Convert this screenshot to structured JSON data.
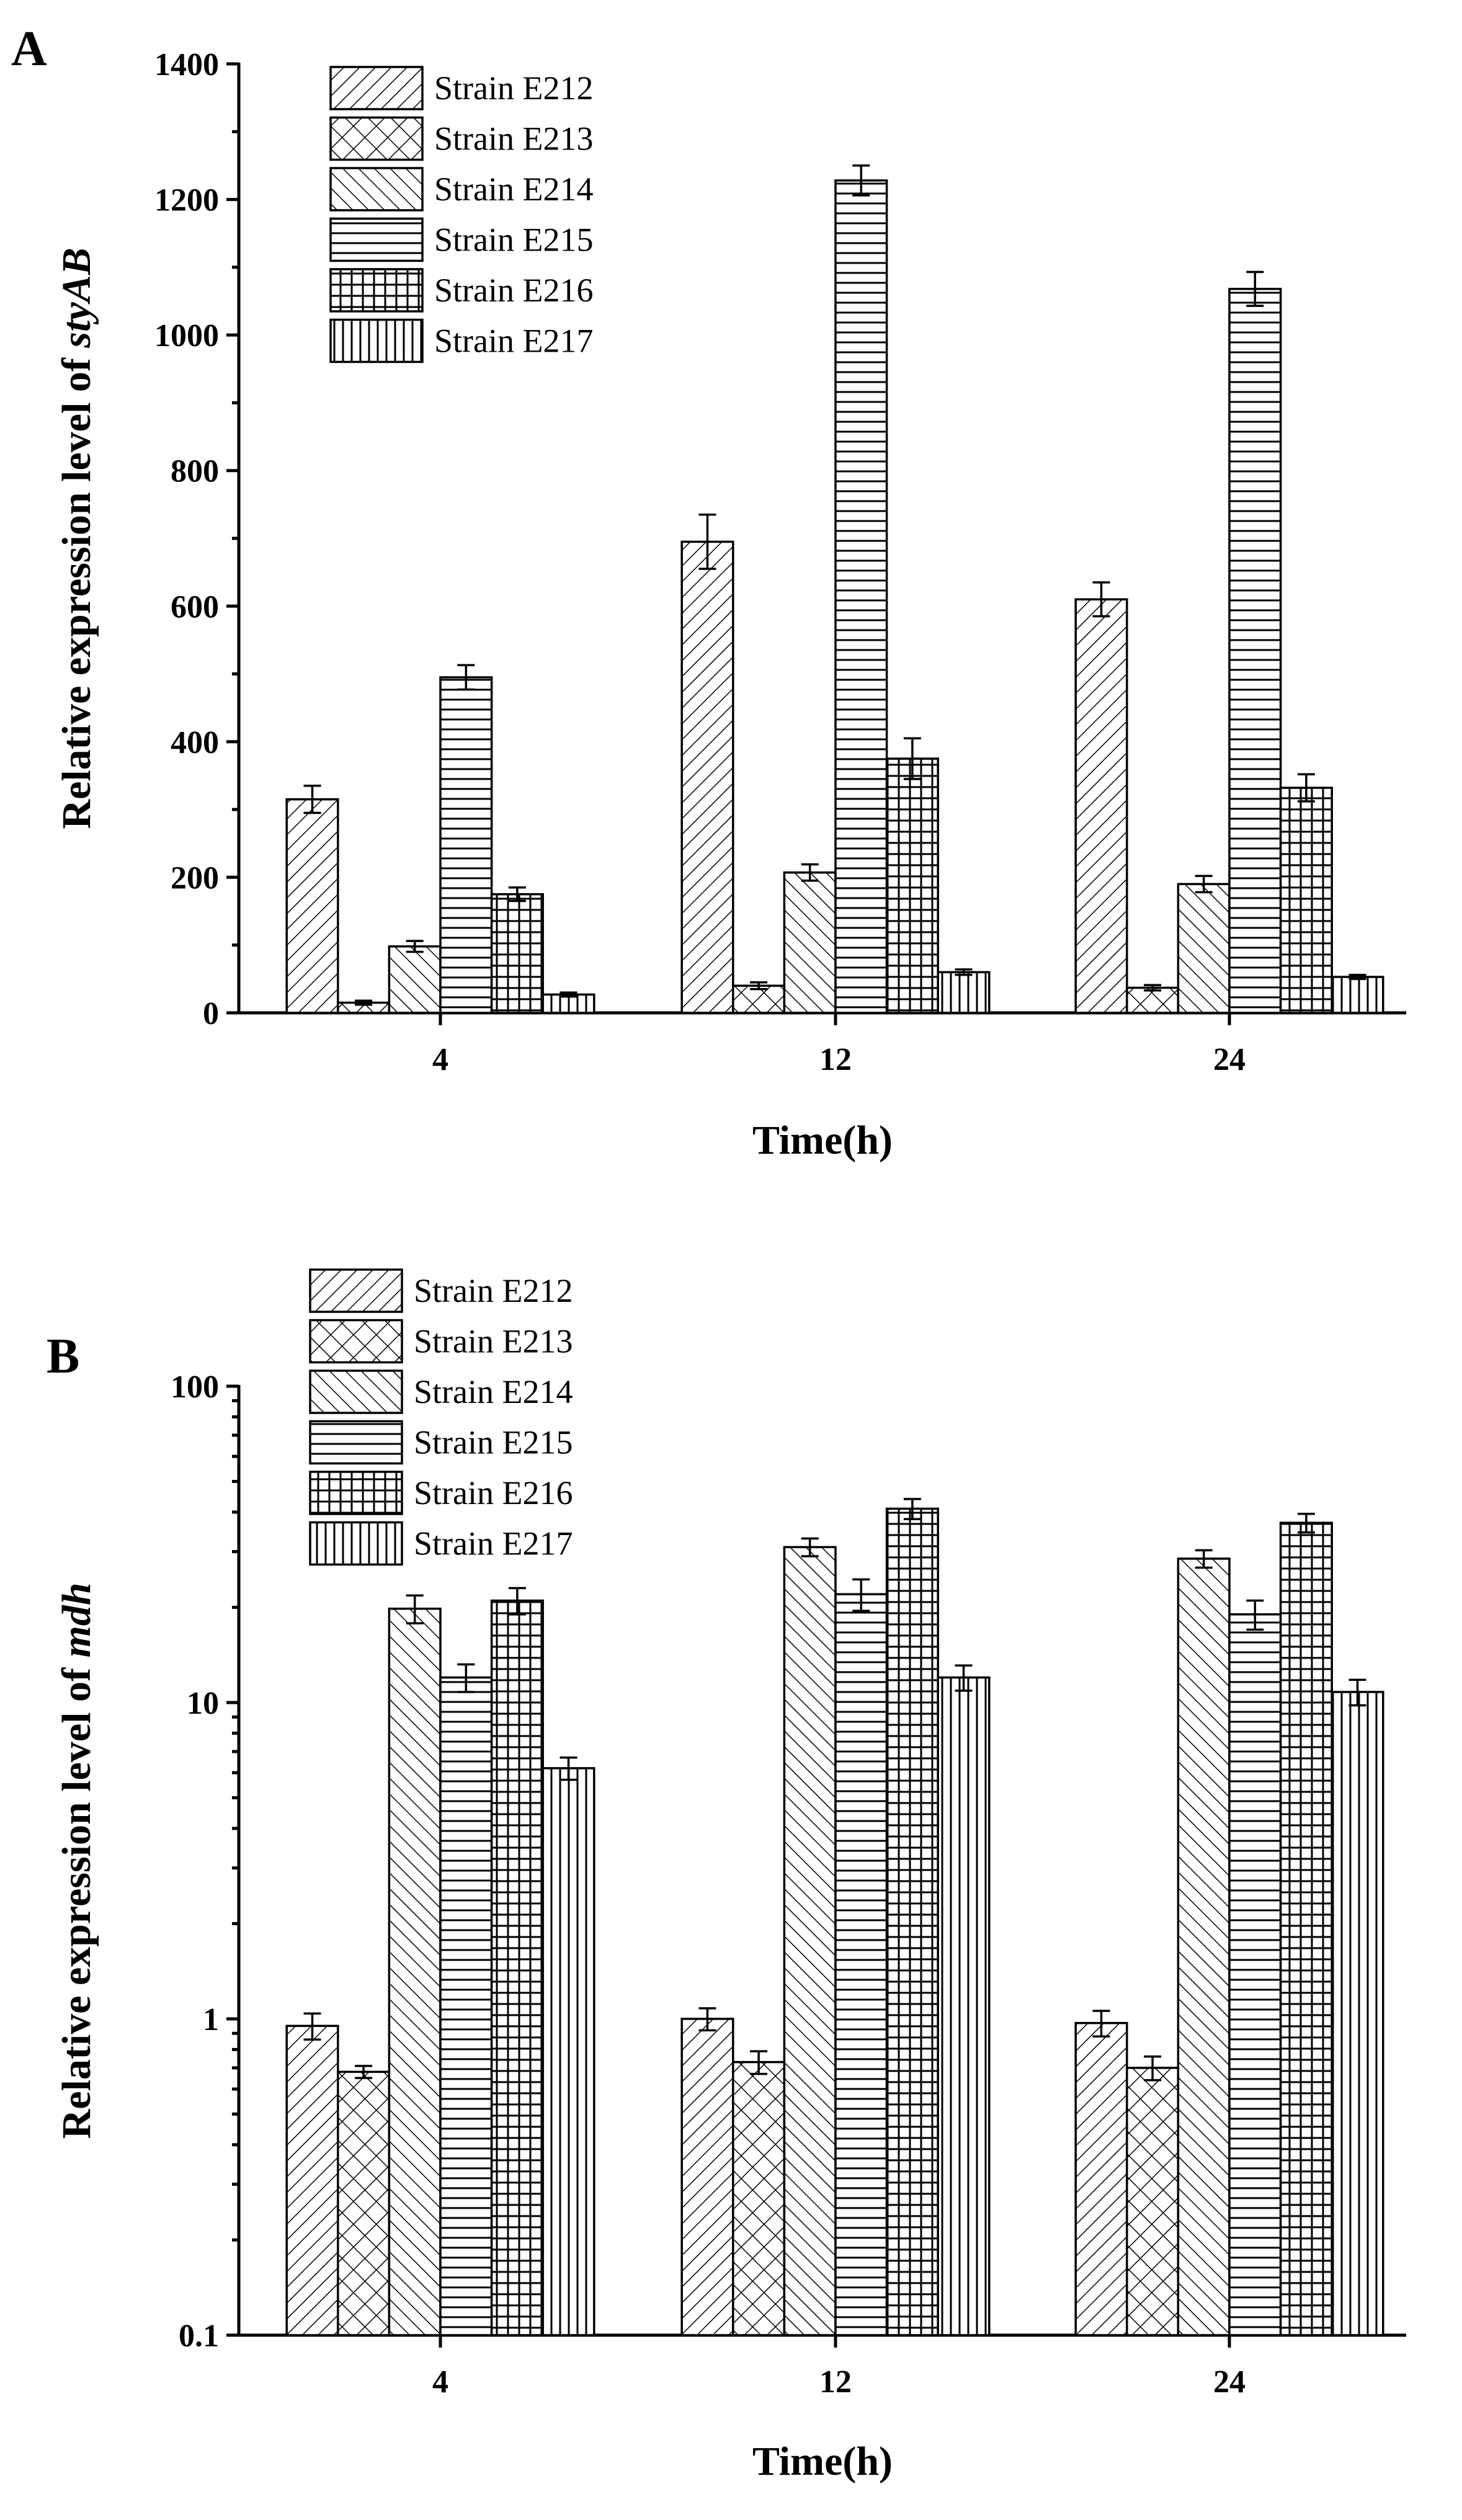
{
  "chart_data": [
    {
      "id": "A",
      "type": "bar",
      "panel_label": "A",
      "title": "",
      "xlabel": "Time(h)",
      "ylabel_prefix": "Relative expression level of ",
      "ylabel_gene": "styAB",
      "scale": "linear",
      "ylim": [
        0,
        1400
      ],
      "yticks": [
        0,
        200,
        400,
        600,
        800,
        1000,
        1200,
        1400
      ],
      "ytick_labels": [
        "0",
        "200",
        "400",
        "600",
        "800",
        "1000",
        "1200",
        "1400"
      ],
      "categories": [
        "4",
        "12",
        "24"
      ],
      "series": [
        {
          "name": "Strain E212",
          "pattern": "diag-fwd",
          "values": [
            315,
            695,
            610
          ],
          "errors": [
            20,
            40,
            25
          ]
        },
        {
          "name": "Strain E213",
          "pattern": "crosshatch",
          "values": [
            15,
            40,
            37
          ],
          "errors": [
            3,
            5,
            4
          ]
        },
        {
          "name": "Strain E214",
          "pattern": "diag-back",
          "values": [
            98,
            207,
            190
          ],
          "errors": [
            8,
            12,
            12
          ]
        },
        {
          "name": "Strain E215",
          "pattern": "horizontal",
          "values": [
            495,
            1228,
            1068
          ],
          "errors": [
            18,
            22,
            25
          ]
        },
        {
          "name": "Strain E216",
          "pattern": "grid",
          "values": [
            175,
            375,
            332
          ],
          "errors": [
            10,
            30,
            20
          ]
        },
        {
          "name": "Strain E217",
          "pattern": "vertical",
          "values": [
            27,
            60,
            53
          ],
          "errors": [
            3,
            4,
            3
          ]
        }
      ],
      "legend_position": "top-left"
    },
    {
      "id": "B",
      "type": "bar",
      "panel_label": "B",
      "title": "",
      "xlabel": "Time(h)",
      "ylabel_prefix": "Relative expression level of ",
      "ylabel_gene": "mdh",
      "scale": "log",
      "ylim": [
        0.1,
        100
      ],
      "yticks": [
        0.1,
        1,
        10,
        100
      ],
      "ytick_labels": [
        "0.1",
        "1",
        "10",
        "100"
      ],
      "categories": [
        "4",
        "12",
        "24"
      ],
      "series": [
        {
          "name": "Strain E212",
          "pattern": "diag-fwd",
          "values": [
            0.95,
            1.0,
            0.97
          ],
          "errors": [
            0.09,
            0.08,
            0.09
          ]
        },
        {
          "name": "Strain E213",
          "pattern": "crosshatch",
          "values": [
            0.68,
            0.73,
            0.7
          ],
          "errors": [
            0.03,
            0.06,
            0.06
          ]
        },
        {
          "name": "Strain E214",
          "pattern": "diag-back",
          "values": [
            19.8,
            31.0,
            28.5
          ],
          "errors": [
            2.0,
            2.0,
            1.8
          ]
        },
        {
          "name": "Strain E215",
          "pattern": "horizontal",
          "values": [
            12.0,
            22.0,
            19.0
          ],
          "errors": [
            1.2,
            2.5,
            2.0
          ]
        },
        {
          "name": "Strain E216",
          "pattern": "grid",
          "values": [
            21.0,
            41.0,
            37.0
          ],
          "errors": [
            2.0,
            3.0,
            2.5
          ]
        },
        {
          "name": "Strain E217",
          "pattern": "vertical",
          "values": [
            6.2,
            12.0,
            10.8
          ],
          "errors": [
            0.5,
            1.1,
            1.0
          ]
        }
      ],
      "legend_position": "top-left"
    }
  ]
}
